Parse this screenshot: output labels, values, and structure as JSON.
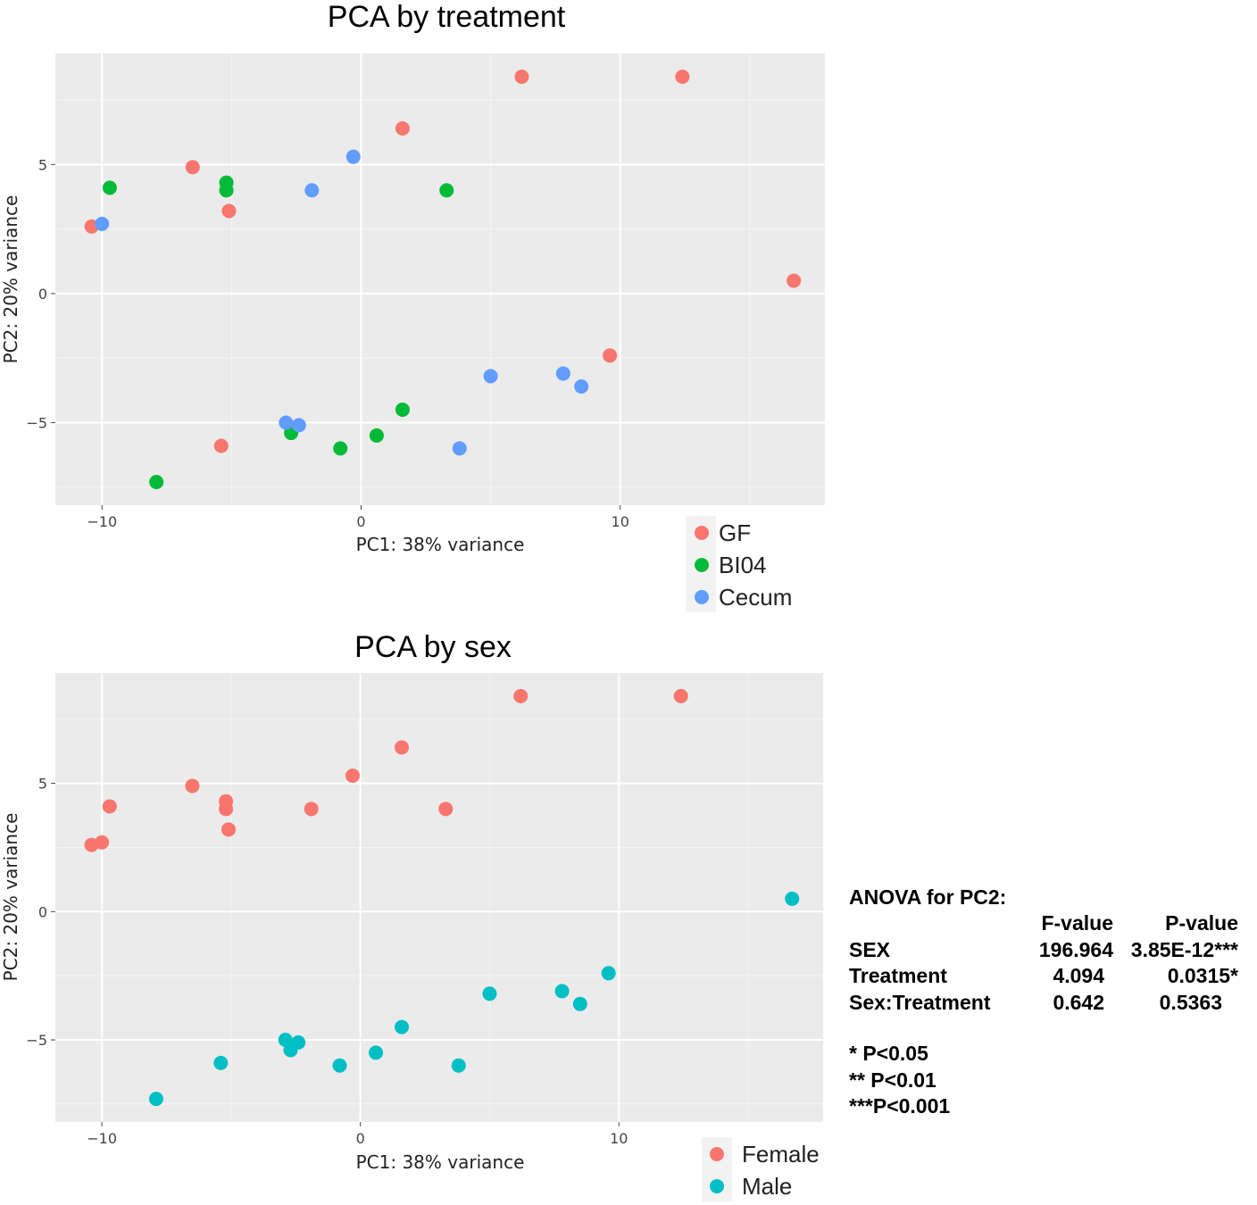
{
  "chart_data": [
    {
      "type": "scatter",
      "title": "PCA by treatment",
      "xlabel": "PC1: 38% variance",
      "ylabel": "PC2: 20% variance",
      "xlim": [
        -11.8,
        17.9
      ],
      "ylim": [
        -8.2,
        9.3
      ],
      "xticks": [
        -10,
        0,
        10
      ],
      "xtick_labels": [
        "−10",
        "0",
        "10"
      ],
      "yticks": [
        -5,
        0,
        5
      ],
      "ytick_labels": [
        "−5",
        "0",
        "5"
      ],
      "grid": true,
      "legend_position": "bottom-right-outside",
      "series": [
        {
          "name": "GF",
          "color": "#F8766D",
          "points": [
            [
              6.2,
              8.4
            ],
            [
              12.4,
              8.4
            ],
            [
              1.6,
              6.4
            ],
            [
              -6.5,
              4.9
            ],
            [
              -5.1,
              3.2
            ],
            [
              -10.4,
              2.6
            ],
            [
              16.7,
              0.5
            ],
            [
              9.6,
              -2.4
            ],
            [
              -5.4,
              -5.9
            ]
          ]
        },
        {
          "name": "BI04",
          "color": "#00BA38",
          "points": [
            [
              -9.7,
              4.1
            ],
            [
              -5.2,
              4.3
            ],
            [
              -5.2,
              4.0
            ],
            [
              3.3,
              4.0
            ],
            [
              1.6,
              -4.5
            ],
            [
              -2.7,
              -5.4
            ],
            [
              0.6,
              -5.5
            ],
            [
              -0.8,
              -6.0
            ],
            [
              -7.9,
              -7.3
            ]
          ]
        },
        {
          "name": "Cecum",
          "color": "#619CFF",
          "points": [
            [
              -0.3,
              5.3
            ],
            [
              -1.9,
              4.0
            ],
            [
              -10.0,
              2.7
            ],
            [
              5.0,
              -3.2
            ],
            [
              7.8,
              -3.1
            ],
            [
              8.5,
              -3.6
            ],
            [
              -2.9,
              -5.0
            ],
            [
              -2.4,
              -5.1
            ],
            [
              3.8,
              -6.0
            ]
          ]
        }
      ]
    },
    {
      "type": "scatter",
      "title": "PCA by sex",
      "xlabel": "PC1: 38% variance",
      "ylabel": "PC2: 20% variance",
      "xlim": [
        -11.8,
        17.9
      ],
      "ylim": [
        -8.2,
        9.3
      ],
      "xticks": [
        -10,
        0,
        10
      ],
      "xtick_labels": [
        "−10",
        "0",
        "10"
      ],
      "yticks": [
        -5,
        0,
        5
      ],
      "ytick_labels": [
        "−5",
        "0",
        "5"
      ],
      "grid": true,
      "legend_position": "bottom-right-outside",
      "series": [
        {
          "name": "Female",
          "color": "#F8766D",
          "points": [
            [
              6.2,
              8.4
            ],
            [
              12.4,
              8.4
            ],
            [
              1.6,
              6.4
            ],
            [
              -0.3,
              5.3
            ],
            [
              -6.5,
              4.9
            ],
            [
              -5.2,
              4.3
            ],
            [
              -5.2,
              4.0
            ],
            [
              -9.7,
              4.1
            ],
            [
              -1.9,
              4.0
            ],
            [
              3.3,
              4.0
            ],
            [
              -5.1,
              3.2
            ],
            [
              -10.0,
              2.7
            ],
            [
              -10.4,
              2.6
            ]
          ]
        },
        {
          "name": "Male",
          "color": "#00BFC4",
          "points": [
            [
              16.7,
              0.5
            ],
            [
              9.6,
              -2.4
            ],
            [
              5.0,
              -3.2
            ],
            [
              7.8,
              -3.1
            ],
            [
              8.5,
              -3.6
            ],
            [
              1.6,
              -4.5
            ],
            [
              -2.9,
              -5.0
            ],
            [
              -2.4,
              -5.1
            ],
            [
              -2.7,
              -5.4
            ],
            [
              0.6,
              -5.5
            ],
            [
              -0.8,
              -6.0
            ],
            [
              3.8,
              -6.0
            ],
            [
              -5.4,
              -5.9
            ],
            [
              -7.9,
              -7.3
            ]
          ]
        }
      ]
    }
  ],
  "anova": {
    "title": "ANOVA for PC2:",
    "header": [
      "",
      "F-value",
      "P-value"
    ],
    "rows": [
      {
        "term": "SEX",
        "f": "196.964",
        "p": "3.85E-12***"
      },
      {
        "term": "Treatment",
        "f": "4.094",
        "p": "0.0315*"
      },
      {
        "term": "Sex:Treatment",
        "f": "0.642",
        "p": "0.5363"
      }
    ],
    "notes": [
      "* P<0.05",
      "** P<0.01",
      "***P<0.001"
    ]
  }
}
